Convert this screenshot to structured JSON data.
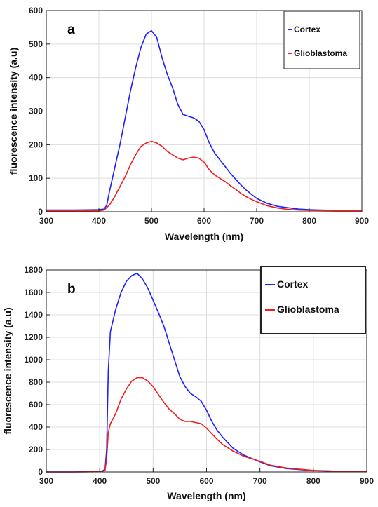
{
  "chart_data": [
    {
      "type": "line",
      "panel_label": "a",
      "xlabel": "Wavelength (nm)",
      "ylabel": "fluorescence intensity (a.u)",
      "xlim": [
        300,
        900
      ],
      "ylim": [
        0,
        600
      ],
      "xticks": [
        300,
        400,
        500,
        600,
        700,
        800,
        900
      ],
      "yticks": [
        0,
        100,
        200,
        300,
        400,
        500,
        600
      ],
      "grid": true,
      "legend_position": "top-right",
      "series": [
        {
          "name": "Cortex",
          "color": "#1f1fff",
          "x": [
            300,
            350,
            400,
            410,
            415,
            420,
            430,
            440,
            450,
            460,
            470,
            480,
            490,
            500,
            510,
            520,
            530,
            540,
            550,
            560,
            570,
            580,
            590,
            600,
            610,
            620,
            630,
            640,
            650,
            660,
            670,
            680,
            690,
            700,
            720,
            740,
            760,
            780,
            800,
            820,
            850,
            900
          ],
          "y": [
            5,
            5,
            6,
            8,
            20,
            60,
            130,
            200,
            280,
            360,
            430,
            490,
            530,
            540,
            520,
            460,
            410,
            370,
            320,
            290,
            285,
            280,
            270,
            245,
            205,
            175,
            155,
            135,
            115,
            97,
            80,
            65,
            52,
            40,
            25,
            16,
            12,
            8,
            6,
            5,
            4,
            4
          ]
        },
        {
          "name": "Glioblastoma",
          "color": "#ee1f1f",
          "x": [
            300,
            350,
            400,
            410,
            420,
            430,
            440,
            450,
            460,
            470,
            480,
            490,
            500,
            510,
            520,
            530,
            540,
            550,
            560,
            570,
            580,
            590,
            600,
            610,
            620,
            630,
            640,
            650,
            660,
            670,
            680,
            690,
            700,
            720,
            740,
            760,
            780,
            800,
            850,
            900
          ],
          "y": [
            2,
            2,
            3,
            5,
            20,
            45,
            75,
            105,
            140,
            170,
            195,
            205,
            210,
            205,
            195,
            180,
            170,
            160,
            155,
            160,
            163,
            160,
            148,
            125,
            110,
            100,
            90,
            78,
            67,
            55,
            45,
            37,
            30,
            18,
            11,
            7,
            5,
            4,
            3,
            3
          ]
        }
      ]
    },
    {
      "type": "line",
      "panel_label": "b",
      "xlabel": "Wavelength (nm)",
      "ylabel": "fluorescence intensity (a.u)",
      "xlim": [
        300,
        900
      ],
      "ylim": [
        0,
        1800
      ],
      "xticks": [
        300,
        400,
        500,
        600,
        700,
        800,
        900
      ],
      "yticks": [
        0,
        200,
        400,
        600,
        800,
        1000,
        1200,
        1400,
        1600,
        1800
      ],
      "grid": true,
      "legend_position": "top-right",
      "series": [
        {
          "name": "Cortex",
          "color": "#1f1fff",
          "x": [
            300,
            350,
            400,
            405,
            410,
            413,
            416,
            420,
            430,
            440,
            450,
            460,
            470,
            480,
            490,
            500,
            510,
            520,
            530,
            540,
            550,
            560,
            570,
            580,
            590,
            600,
            610,
            620,
            630,
            640,
            650,
            670,
            700,
            720,
            750,
            800,
            850,
            900
          ],
          "y": [
            0,
            0,
            3,
            8,
            25,
            200,
            900,
            1250,
            1450,
            1600,
            1700,
            1750,
            1770,
            1720,
            1640,
            1530,
            1420,
            1300,
            1150,
            1000,
            850,
            760,
            700,
            670,
            630,
            550,
            450,
            370,
            310,
            260,
            210,
            150,
            90,
            55,
            30,
            12,
            5,
            3
          ]
        },
        {
          "name": "Glioblastoma",
          "color": "#ee1f1f",
          "x": [
            300,
            350,
            400,
            405,
            410,
            413,
            416,
            420,
            430,
            440,
            450,
            460,
            470,
            480,
            490,
            500,
            510,
            520,
            530,
            540,
            550,
            560,
            570,
            580,
            590,
            600,
            610,
            620,
            630,
            640,
            650,
            670,
            700,
            720,
            750,
            800,
            850,
            900
          ],
          "y": [
            0,
            0,
            2,
            6,
            15,
            120,
            350,
            430,
            520,
            650,
            740,
            810,
            840,
            840,
            810,
            760,
            690,
            620,
            560,
            520,
            470,
            450,
            450,
            440,
            430,
            390,
            340,
            290,
            245,
            215,
            185,
            140,
            95,
            60,
            35,
            14,
            6,
            3
          ]
        }
      ]
    }
  ]
}
